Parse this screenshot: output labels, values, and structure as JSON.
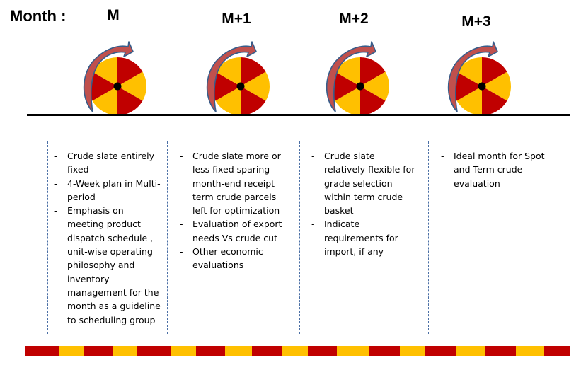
{
  "header": {
    "month_label": "Month :"
  },
  "periods": [
    {
      "title": "M",
      "notes": [
        "Crude slate entirely fixed",
        "4-Week plan in Multi-period",
        "Emphasis on meeting product dispatch schedule , unit-wise operating philosophy and inventory management for the month as a guideline to scheduling group"
      ]
    },
    {
      "title": "M+1",
      "notes": [
        "Crude slate more or less fixed sparing month-end receipt term crude parcels left for optimization",
        "Evaluation of export needs Vs crude cut",
        "Other economic evaluations"
      ]
    },
    {
      "title": "M+2",
      "notes": [
        "Crude slate relatively flexible for grade selection within term crude basket",
        "Indicate requirements for import, if any"
      ]
    },
    {
      "title": "M+3",
      "notes": [
        "Ideal month for Spot and Term crude evaluation"
      ]
    }
  ],
  "colors": {
    "wheel_red": "#c00000",
    "wheel_yellow": "#ffc000",
    "arrow_fill": "#c0504d",
    "arrow_stroke": "#385d8a",
    "divider": "#4a6fa5"
  }
}
